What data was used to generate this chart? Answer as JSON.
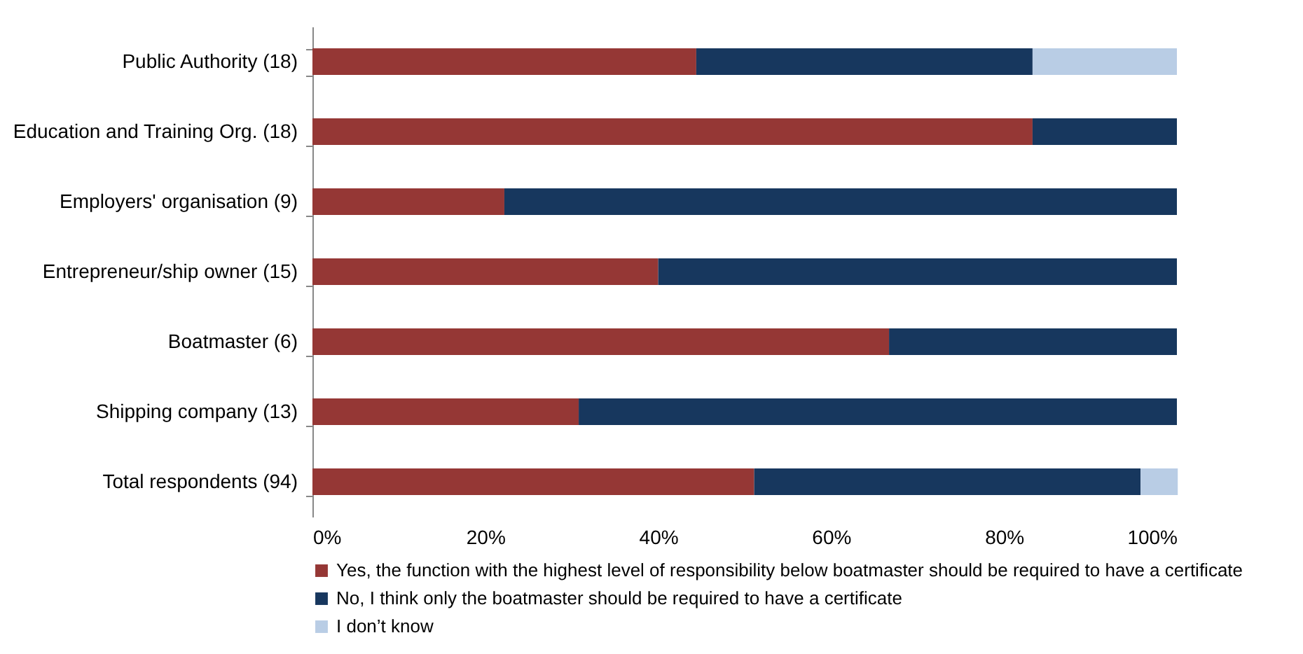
{
  "chart_data": {
    "type": "bar",
    "orientation": "horizontal",
    "stacked": true,
    "legend": "bottom",
    "grid": false,
    "categories": [
      "Public Authority (18)",
      "Education and Training Org. (18)",
      "Employers' organisation (9)",
      "Entrepreneur/ship owner (15)",
      "Boatmaster (6)",
      "Shipping company (13)",
      "Total respondents (94)"
    ],
    "series": [
      {
        "name": "Yes, the function with the highest level of responsibility below boatmaster should be required to have a certificate",
        "color": "#953735",
        "values": [
          44.4,
          83.3,
          22.2,
          40,
          66.7,
          30.8,
          51.1
        ]
      },
      {
        "name": "No, I think only the boatmaster should be required to have a certificate",
        "color": "#17375e",
        "values": [
          38.9,
          16.7,
          77.8,
          60,
          33.3,
          69.2,
          44.7
        ]
      },
      {
        "name": "I don’t know",
        "color": "#b9cde5",
        "values": [
          16.7,
          0,
          0,
          0,
          0,
          0,
          4.3
        ]
      }
    ],
    "xlim": [
      0,
      100
    ],
    "xticks": [
      {
        "value": 0,
        "label": "0%"
      },
      {
        "value": 20,
        "label": "20%"
      },
      {
        "value": 40,
        "label": "40%"
      },
      {
        "value": 60,
        "label": "60%"
      },
      {
        "value": 80,
        "label": "80%"
      },
      {
        "value": 100,
        "label": "100%"
      }
    ]
  }
}
